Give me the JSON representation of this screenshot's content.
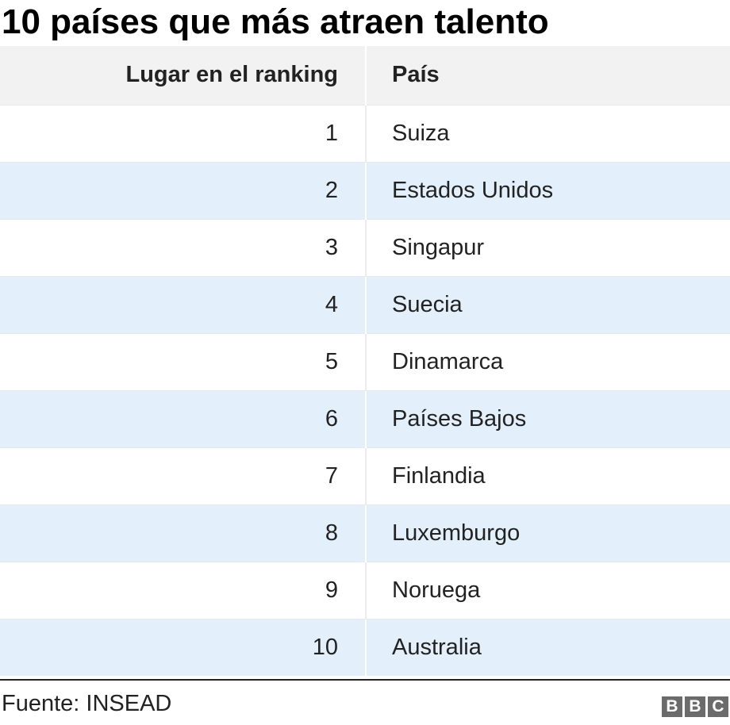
{
  "chart_data": {
    "type": "table",
    "title": "10 países que más atraen talento",
    "columns": [
      "Lugar en el ranking",
      "País"
    ],
    "rows": [
      {
        "rank": "1",
        "country": "Suiza"
      },
      {
        "rank": "2",
        "country": "Estados Unidos"
      },
      {
        "rank": "3",
        "country": "Singapur"
      },
      {
        "rank": "4",
        "country": "Suecia"
      },
      {
        "rank": "5",
        "country": "Dinamarca"
      },
      {
        "rank": "6",
        "country": "Países Bajos"
      },
      {
        "rank": "7",
        "country": "Finlandia"
      },
      {
        "rank": "8",
        "country": "Luxemburgo"
      },
      {
        "rank": "9",
        "country": "Noruega"
      },
      {
        "rank": "10",
        "country": "Australia"
      }
    ],
    "source": "Fuente: INSEAD"
  },
  "logo": {
    "name": "bbc-logo",
    "letters": [
      "B",
      "B",
      "C"
    ]
  },
  "colors": {
    "header_bg": "#f2f2f2",
    "stripe_bg": "#e3f0fb",
    "logo_bg": "#6b6b6b"
  }
}
